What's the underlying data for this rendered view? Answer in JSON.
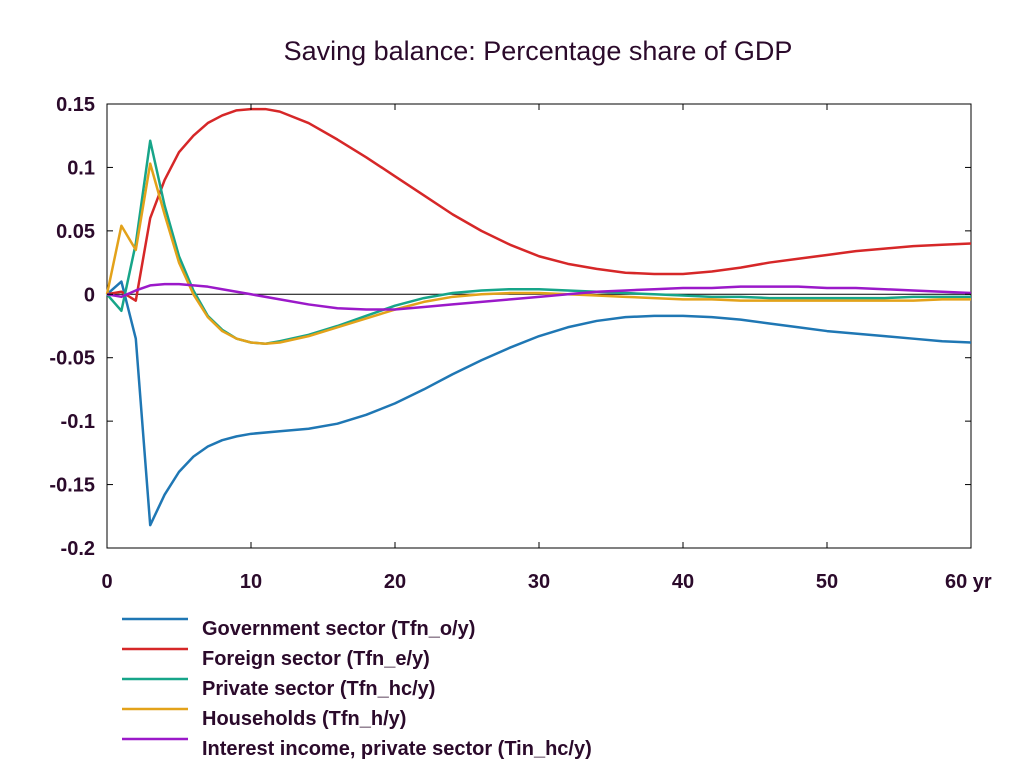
{
  "chart_data": {
    "type": "line",
    "title": "Saving balance: Percentage share of GDP",
    "xlabel": "",
    "ylabel": "",
    "x_unit": "yr",
    "xlim": [
      0,
      60
    ],
    "ylim": [
      -0.2,
      0.15
    ],
    "x_ticks": [
      0,
      10,
      20,
      30,
      40,
      50,
      60
    ],
    "x_tick_labels": [
      "0",
      "10",
      "20",
      "30",
      "40",
      "50",
      "60 yr"
    ],
    "y_ticks": [
      0.15,
      0.1,
      0.05,
      0,
      -0.05,
      -0.1,
      -0.15,
      -0.2
    ],
    "y_tick_labels": [
      "0.15",
      "0.1",
      "0.05",
      "0",
      "-0.05",
      "-0.1",
      "-0.15",
      "-0.2"
    ],
    "grid": false,
    "zero_line": true,
    "legend_position": "bottom",
    "series": [
      {
        "name": "Government sector (Tfn_o/y)",
        "color": "#1f77b4",
        "points": [
          [
            0,
            0
          ],
          [
            1,
            0.01
          ],
          [
            2,
            -0.035
          ],
          [
            3,
            -0.182
          ],
          [
            4,
            -0.158
          ],
          [
            5,
            -0.14
          ],
          [
            6,
            -0.128
          ],
          [
            7,
            -0.12
          ],
          [
            8,
            -0.115
          ],
          [
            9,
            -0.112
          ],
          [
            10,
            -0.11
          ],
          [
            12,
            -0.108
          ],
          [
            14,
            -0.106
          ],
          [
            16,
            -0.102
          ],
          [
            18,
            -0.095
          ],
          [
            20,
            -0.086
          ],
          [
            22,
            -0.075
          ],
          [
            24,
            -0.063
          ],
          [
            26,
            -0.052
          ],
          [
            28,
            -0.042
          ],
          [
            30,
            -0.033
          ],
          [
            32,
            -0.026
          ],
          [
            34,
            -0.021
          ],
          [
            36,
            -0.018
          ],
          [
            38,
            -0.017
          ],
          [
            40,
            -0.017
          ],
          [
            42,
            -0.018
          ],
          [
            44,
            -0.02
          ],
          [
            46,
            -0.023
          ],
          [
            48,
            -0.026
          ],
          [
            50,
            -0.029
          ],
          [
            52,
            -0.031
          ],
          [
            54,
            -0.033
          ],
          [
            56,
            -0.035
          ],
          [
            58,
            -0.037
          ],
          [
            60,
            -0.038
          ]
        ]
      },
      {
        "name": "Foreign sector (Tfn_e/y)",
        "color": "#d62728",
        "points": [
          [
            0,
            0
          ],
          [
            1,
            0.002
          ],
          [
            2,
            -0.005
          ],
          [
            3,
            0.06
          ],
          [
            4,
            0.09
          ],
          [
            5,
            0.112
          ],
          [
            6,
            0.125
          ],
          [
            7,
            0.135
          ],
          [
            8,
            0.141
          ],
          [
            9,
            0.145
          ],
          [
            10,
            0.146
          ],
          [
            11,
            0.146
          ],
          [
            12,
            0.144
          ],
          [
            14,
            0.135
          ],
          [
            16,
            0.122
          ],
          [
            18,
            0.108
          ],
          [
            20,
            0.093
          ],
          [
            22,
            0.078
          ],
          [
            24,
            0.063
          ],
          [
            26,
            0.05
          ],
          [
            28,
            0.039
          ],
          [
            30,
            0.03
          ],
          [
            32,
            0.024
          ],
          [
            34,
            0.02
          ],
          [
            36,
            0.017
          ],
          [
            38,
            0.016
          ],
          [
            40,
            0.016
          ],
          [
            42,
            0.018
          ],
          [
            44,
            0.021
          ],
          [
            46,
            0.025
          ],
          [
            48,
            0.028
          ],
          [
            50,
            0.031
          ],
          [
            52,
            0.034
          ],
          [
            54,
            0.036
          ],
          [
            56,
            0.038
          ],
          [
            58,
            0.039
          ],
          [
            60,
            0.04
          ]
        ]
      },
      {
        "name": "Private sector (Tfn_hc/y)",
        "color": "#17a589",
        "points": [
          [
            0,
            0
          ],
          [
            1,
            -0.013
          ],
          [
            2,
            0.04
          ],
          [
            3,
            0.121
          ],
          [
            4,
            0.07
          ],
          [
            5,
            0.03
          ],
          [
            6,
            0.003
          ],
          [
            7,
            -0.017
          ],
          [
            8,
            -0.028
          ],
          [
            9,
            -0.035
          ],
          [
            10,
            -0.038
          ],
          [
            11,
            -0.039
          ],
          [
            12,
            -0.037
          ],
          [
            14,
            -0.032
          ],
          [
            16,
            -0.025
          ],
          [
            18,
            -0.017
          ],
          [
            20,
            -0.009
          ],
          [
            22,
            -0.003
          ],
          [
            24,
            0.001
          ],
          [
            26,
            0.003
          ],
          [
            28,
            0.004
          ],
          [
            30,
            0.004
          ],
          [
            32,
            0.003
          ],
          [
            34,
            0.002
          ],
          [
            36,
            0.001
          ],
          [
            38,
            0
          ],
          [
            40,
            -0.001
          ],
          [
            42,
            -0.002
          ],
          [
            44,
            -0.002
          ],
          [
            46,
            -0.003
          ],
          [
            48,
            -0.003
          ],
          [
            50,
            -0.003
          ],
          [
            52,
            -0.003
          ],
          [
            54,
            -0.003
          ],
          [
            56,
            -0.002
          ],
          [
            58,
            -0.002
          ],
          [
            60,
            -0.002
          ]
        ]
      },
      {
        "name": "Households (Tfn_h/y)",
        "color": "#e3a21a",
        "points": [
          [
            0,
            0
          ],
          [
            1,
            0.054
          ],
          [
            2,
            0.035
          ],
          [
            3,
            0.103
          ],
          [
            4,
            0.063
          ],
          [
            5,
            0.025
          ],
          [
            6,
            0
          ],
          [
            7,
            -0.018
          ],
          [
            8,
            -0.029
          ],
          [
            9,
            -0.035
          ],
          [
            10,
            -0.038
          ],
          [
            11,
            -0.039
          ],
          [
            12,
            -0.038
          ],
          [
            14,
            -0.033
          ],
          [
            16,
            -0.026
          ],
          [
            18,
            -0.019
          ],
          [
            20,
            -0.012
          ],
          [
            22,
            -0.006
          ],
          [
            24,
            -0.002
          ],
          [
            26,
            0
          ],
          [
            28,
            0.001
          ],
          [
            30,
            0.001
          ],
          [
            32,
            0
          ],
          [
            34,
            -0.001
          ],
          [
            36,
            -0.002
          ],
          [
            38,
            -0.003
          ],
          [
            40,
            -0.004
          ],
          [
            42,
            -0.004
          ],
          [
            44,
            -0.005
          ],
          [
            46,
            -0.005
          ],
          [
            48,
            -0.005
          ],
          [
            50,
            -0.005
          ],
          [
            52,
            -0.005
          ],
          [
            54,
            -0.005
          ],
          [
            56,
            -0.005
          ],
          [
            58,
            -0.004
          ],
          [
            60,
            -0.004
          ]
        ]
      },
      {
        "name": "Interest income, private sector (Tin_hc/y)",
        "color": "#9b19c9",
        "points": [
          [
            0,
            0
          ],
          [
            1,
            -0.002
          ],
          [
            2,
            0.003
          ],
          [
            3,
            0.007
          ],
          [
            4,
            0.008
          ],
          [
            5,
            0.008
          ],
          [
            6,
            0.007
          ],
          [
            7,
            0.006
          ],
          [
            8,
            0.004
          ],
          [
            9,
            0.002
          ],
          [
            10,
            0
          ],
          [
            12,
            -0.004
          ],
          [
            14,
            -0.008
          ],
          [
            16,
            -0.011
          ],
          [
            18,
            -0.012
          ],
          [
            20,
            -0.012
          ],
          [
            22,
            -0.01
          ],
          [
            24,
            -0.008
          ],
          [
            26,
            -0.006
          ],
          [
            28,
            -0.004
          ],
          [
            30,
            -0.002
          ],
          [
            32,
            0
          ],
          [
            34,
            0.002
          ],
          [
            36,
            0.003
          ],
          [
            38,
            0.004
          ],
          [
            40,
            0.005
          ],
          [
            42,
            0.005
          ],
          [
            44,
            0.006
          ],
          [
            46,
            0.006
          ],
          [
            48,
            0.006
          ],
          [
            50,
            0.005
          ],
          [
            52,
            0.005
          ],
          [
            54,
            0.004
          ],
          [
            56,
            0.003
          ],
          [
            58,
            0.002
          ],
          [
            60,
            0.001
          ]
        ]
      }
    ]
  }
}
